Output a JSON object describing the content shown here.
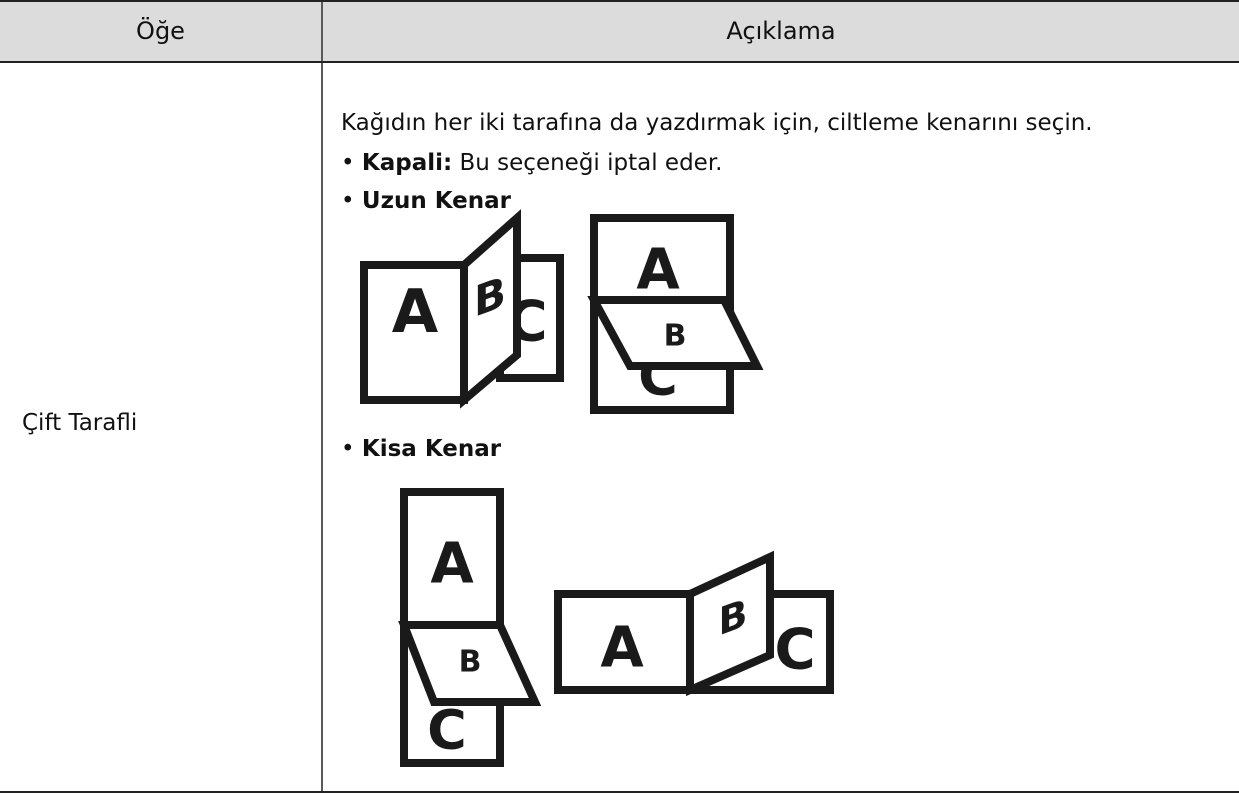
{
  "table": {
    "headers": [
      "Öğe",
      "Açıklama"
    ],
    "rows": [
      {
        "item": "Çift Tarafli",
        "intro": "Kağıdın her iki tarafına da yazdırmak için, ciltleme kenarını seçin.",
        "options": [
          {
            "label": "Kapali:",
            "text": "Bu seçeneği iptal eder."
          },
          {
            "label": "Uzun Kenar"
          },
          {
            "label": "Kisa Kenar"
          }
        ]
      }
    ]
  },
  "figure_letters": [
    "A",
    "B",
    "C"
  ]
}
